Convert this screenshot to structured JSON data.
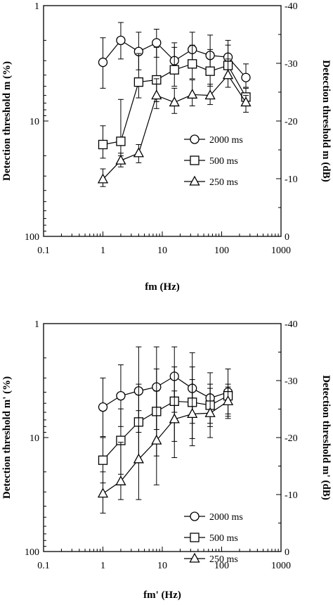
{
  "colors": {
    "ink": "#000000",
    "marker_fill": "#ffffff",
    "background": "#ffffff"
  },
  "chart_data": [
    {
      "type": "line",
      "xlabel": "fm (Hz)",
      "ylabel": "Detection threshold m (%)",
      "y2label": "Detection threshold m (dB)",
      "x_scale": "log",
      "y_scale": "log",
      "y_reversed": true,
      "xlim": [
        0.1,
        1000
      ],
      "ylim": [
        1,
        100
      ],
      "y2lim": [
        -40,
        0
      ],
      "x_tick_labels": [
        "0.1",
        "1",
        "10",
        "100",
        "1000"
      ],
      "y_tick_labels": [
        "1",
        "10",
        "100"
      ],
      "y2_tick_labels": [
        "-40",
        "-30",
        "-20",
        "-10",
        "0"
      ],
      "grid": false,
      "legend_position": "center-right",
      "x": [
        1,
        2,
        4,
        8,
        16,
        32,
        64,
        128,
        256
      ],
      "series": [
        {
          "name": "2000 ms",
          "marker": "circle",
          "values": [
            3.1,
            2.0,
            2.5,
            2.1,
            3.0,
            2.4,
            2.7,
            2.8,
            4.2
          ],
          "err_low": [
            1.9,
            1.4,
            1.7,
            1.6,
            2.1,
            1.7,
            1.8,
            2.0,
            3.2
          ],
          "err_high": [
            5.2,
            2.9,
            3.6,
            2.8,
            3.7,
            3.2,
            3.8,
            3.4,
            5.1
          ]
        },
        {
          "name": "500 ms",
          "marker": "square",
          "values": [
            16.0,
            15.0,
            4.6,
            4.4,
            3.6,
            3.2,
            3.7,
            3.3,
            6.2
          ],
          "err_low": [
            11.0,
            6.5,
            2.6,
            2.3,
            2.3,
            2.2,
            2.4,
            2.2,
            5.2
          ],
          "err_high": [
            21.0,
            20.0,
            6.3,
            6.8,
            5.0,
            4.3,
            5.0,
            4.3,
            7.0
          ]
        },
        {
          "name": "250 ms",
          "marker": "triangle",
          "values": [
            32.0,
            22.0,
            19.0,
            6.0,
            6.9,
            5.9,
            6.0,
            4.0,
            6.9
          ],
          "err_low": [
            26.0,
            19.0,
            16.0,
            4.3,
            5.2,
            4.4,
            4.8,
            2.9,
            6.0
          ],
          "err_high": [
            37.0,
            25.0,
            23.0,
            7.8,
            8.6,
            7.4,
            7.2,
            5.1,
            8.4
          ]
        }
      ]
    },
    {
      "type": "line",
      "xlabel": "fm' (Hz)",
      "ylabel": "Detection threshold m' (%)",
      "y2label": "Detection threshold m' (dB)",
      "x_scale": "log",
      "y_scale": "log",
      "y_reversed": true,
      "xlim": [
        0.1,
        1000
      ],
      "ylim": [
        1,
        100
      ],
      "y2lim": [
        -40,
        0
      ],
      "x_tick_labels": [
        "0.1",
        "1",
        "10",
        "100",
        "1000"
      ],
      "y_tick_labels": [
        "1",
        "10",
        "100"
      ],
      "y2_tick_labels": [
        "-40",
        "-30",
        "-20",
        "-10",
        "0"
      ],
      "grid": false,
      "legend_position": "bottom-right",
      "x": [
        1,
        2,
        4,
        8,
        16,
        32,
        64,
        128
      ],
      "series": [
        {
          "name": "2000 ms",
          "marker": "circle",
          "values": [
            5.4,
            4.3,
            3.9,
            3.6,
            2.9,
            3.7,
            4.5,
            4.0
          ],
          "err_low": [
            3.0,
            2.3,
            1.6,
            1.6,
            1.6,
            1.8,
            2.7,
            2.5
          ],
          "err_high": [
            9.8,
            8.0,
            9.0,
            8.5,
            6.0,
            7.5,
            7.5,
            6.5
          ]
        },
        {
          "name": "500 ms",
          "marker": "square",
          "values": [
            15.8,
            10.6,
            7.3,
            5.9,
            4.8,
            4.9,
            5.2,
            4.3
          ],
          "err_low": [
            10.0,
            5.6,
            3.4,
            2.5,
            2.4,
            2.4,
            3.4,
            3.4
          ],
          "err_high": [
            25.0,
            21.0,
            16.5,
            14.5,
            10.8,
            10.2,
            8.0,
            6.2
          ]
        },
        {
          "name": "250 ms",
          "marker": "triangle",
          "values": [
            31.0,
            24.2,
            15.5,
            10.6,
            6.9,
            6.2,
            6.1,
            4.8
          ],
          "err_low": [
            20.0,
            11.0,
            5.8,
            3.9,
            3.9,
            3.1,
            3.7,
            3.6
          ],
          "err_high": [
            46.0,
            35.0,
            35.0,
            26.0,
            15.0,
            11.8,
            10.0,
            6.8
          ]
        }
      ]
    }
  ]
}
